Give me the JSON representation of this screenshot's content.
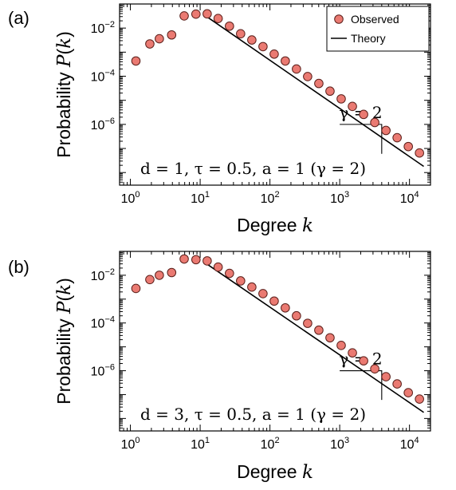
{
  "colors": {
    "marker_fill": "#ea7a72",
    "marker_stroke": "#5a1f1a",
    "line": "#000000"
  },
  "chart_data": [
    {
      "type": "scatter",
      "panel_label": "(a)",
      "xlabel": "Degree k",
      "ylabel": "Probability P(k)",
      "xscale": "log",
      "yscale": "log",
      "xlim": [
        0.7,
        20000
      ],
      "ylim": [
        3e-09,
        0.1
      ],
      "x_ticks": [
        "10^0",
        "10^1",
        "10^2",
        "10^3",
        "10^4"
      ],
      "y_ticks": [
        "10^-2",
        "10^-4",
        "10^-6"
      ],
      "legend": {
        "position": "top-right",
        "entries": [
          "Observed",
          "Theory"
        ]
      },
      "annotation_params": "d = 1, τ = 0.5, a = 1 (γ = 2)",
      "annotation_slope": "γ = 2",
      "series": [
        {
          "name": "Observed",
          "style": "markers",
          "x": [
            1.2,
            1.9,
            2.6,
            3.9,
            5.9,
            8.7,
            12.6,
            18.1,
            26.3,
            38.0,
            55.0,
            79.5,
            115,
            166,
            240,
            347,
            502,
            726,
            1050,
            1520,
            2200,
            3180,
            4600,
            6650,
            9620,
            13900
          ],
          "y": [
            0.00043,
            0.0022,
            0.0036,
            0.0052,
            0.032,
            0.038,
            0.039,
            0.025,
            0.012,
            0.0058,
            0.0032,
            0.0017,
            0.00083,
            0.00043,
            0.0002,
            9.7e-05,
            5e-05,
            2.4e-05,
            1.15e-05,
            5.6e-06,
            2.6e-06,
            1.2e-06,
            5.6e-07,
            2.8e-07,
            1.2e-07,
            6.5e-08
          ]
        },
        {
          "name": "Theory",
          "style": "line",
          "x": [
            12,
            16000
          ],
          "y": [
            0.032,
            1.8e-08
          ]
        }
      ],
      "slope_triangle": {
        "x": [
          1000,
          4000
        ],
        "y": [
          1e-06,
          6e-08
        ]
      }
    },
    {
      "type": "scatter",
      "panel_label": "(b)",
      "xlabel": "Degree k",
      "ylabel": "Probability P(k)",
      "xscale": "log",
      "yscale": "log",
      "xlim": [
        0.7,
        20000
      ],
      "ylim": [
        3e-09,
        0.1
      ],
      "x_ticks": [
        "10^0",
        "10^1",
        "10^2",
        "10^3",
        "10^4"
      ],
      "y_ticks": [
        "10^-2",
        "10^-4",
        "10^-6"
      ],
      "annotation_params": "d = 3, τ = 0.5, a = 1 (γ = 2)",
      "annotation_slope": "γ = 2",
      "series": [
        {
          "name": "Observed",
          "style": "markers",
          "x": [
            1.2,
            1.9,
            2.6,
            3.9,
            5.9,
            8.7,
            12.6,
            18.1,
            26.3,
            38.0,
            55.0,
            79.5,
            115,
            166,
            240,
            347,
            502,
            726,
            1050,
            1520,
            2200,
            3180,
            4600,
            6650,
            9620,
            13900
          ],
          "y": [
            0.0028,
            0.0066,
            0.01,
            0.013,
            0.048,
            0.045,
            0.04,
            0.022,
            0.012,
            0.0058,
            0.0032,
            0.0017,
            0.00083,
            0.00043,
            0.0002,
            9.7e-05,
            5e-05,
            2.4e-05,
            1.15e-05,
            5.6e-06,
            2.6e-06,
            1.2e-06,
            5.6e-07,
            2.8e-07,
            1.2e-07,
            6.5e-08
          ]
        },
        {
          "name": "Theory",
          "style": "line",
          "x": [
            12,
            16000
          ],
          "y": [
            0.032,
            1.8e-08
          ]
        }
      ],
      "slope_triangle": {
        "x": [
          1000,
          4000
        ],
        "y": [
          1e-06,
          6e-08
        ]
      }
    }
  ]
}
